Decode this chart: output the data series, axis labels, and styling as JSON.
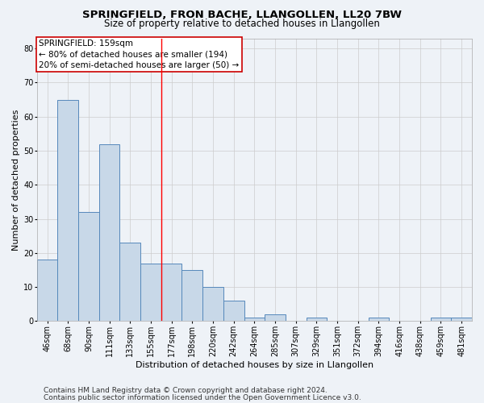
{
  "title1": "SPRINGFIELD, FRON BACHE, LLANGOLLEN, LL20 7BW",
  "title2": "Size of property relative to detached houses in Llangollen",
  "xlabel": "Distribution of detached houses by size in Llangollen",
  "ylabel": "Number of detached properties",
  "categories": [
    "46sqm",
    "68sqm",
    "90sqm",
    "111sqm",
    "133sqm",
    "155sqm",
    "177sqm",
    "198sqm",
    "220sqm",
    "242sqm",
    "264sqm",
    "285sqm",
    "307sqm",
    "329sqm",
    "351sqm",
    "372sqm",
    "394sqm",
    "416sqm",
    "438sqm",
    "459sqm",
    "481sqm"
  ],
  "values": [
    18,
    65,
    32,
    52,
    23,
    17,
    17,
    15,
    10,
    6,
    1,
    2,
    0,
    1,
    0,
    0,
    1,
    0,
    0,
    1,
    1
  ],
  "bar_color": "#c8d8e8",
  "bar_edge_color": "#5588bb",
  "highlight_line_index": 5,
  "annotation_text_line1": "SPRINGFIELD: 159sqm",
  "annotation_text_line2": "← 80% of detached houses are smaller (194)",
  "annotation_text_line3": "20% of semi-detached houses are larger (50) →",
  "annotation_box_color": "#ffffff",
  "annotation_border_color": "#cc0000",
  "ylim": [
    0,
    83
  ],
  "yticks": [
    0,
    10,
    20,
    30,
    40,
    50,
    60,
    70,
    80
  ],
  "footer1": "Contains HM Land Registry data © Crown copyright and database right 2024.",
  "footer2": "Contains public sector information licensed under the Open Government Licence v3.0.",
  "background_color": "#eef2f7",
  "plot_background_color": "#eef2f7",
  "grid_color": "#cccccc",
  "title1_fontsize": 9.5,
  "title2_fontsize": 8.5,
  "xlabel_fontsize": 8,
  "ylabel_fontsize": 8,
  "tick_fontsize": 7,
  "footer_fontsize": 6.5,
  "annotation_fontsize": 7.5
}
